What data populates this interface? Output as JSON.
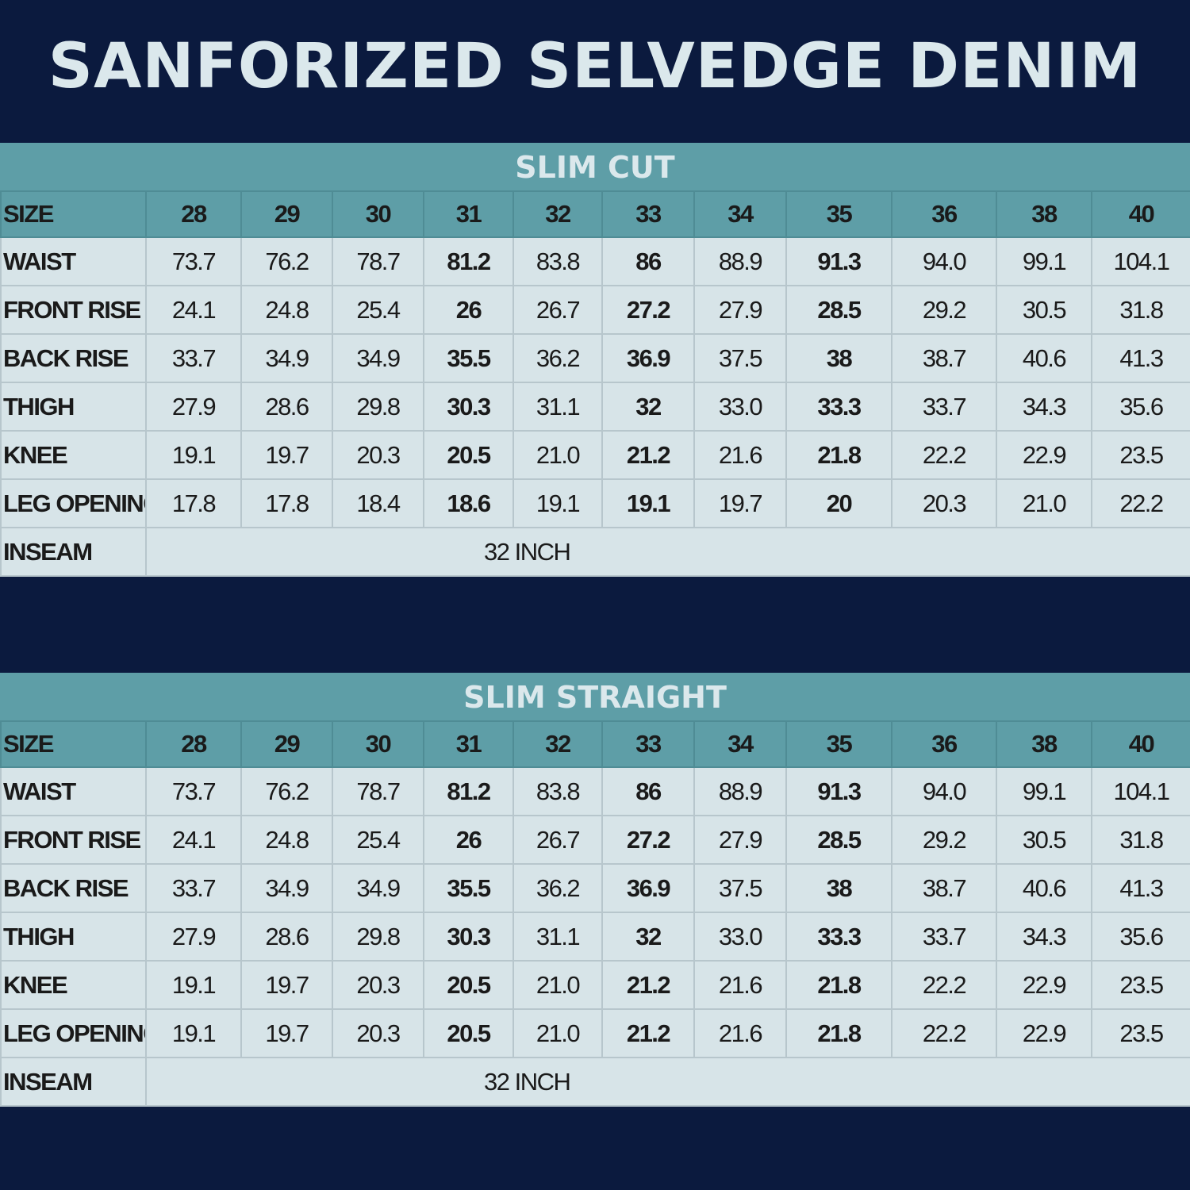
{
  "title": "SANFORIZED SELVEDGE DENIM",
  "colors": {
    "background": "#0b1a3e",
    "band": "#5e9ea7",
    "cell": "#d7e4e8",
    "title_text": "#dbe8ec"
  },
  "tables": [
    {
      "name": "SLIM CUT",
      "size_label": "SIZE",
      "sizes": [
        "28",
        "29",
        "30",
        "31",
        "32",
        "33",
        "34",
        "35",
        "36",
        "38",
        "40"
      ],
      "rows": [
        {
          "label": "WAIST",
          "values": [
            "73.7",
            "76.2",
            "78.7",
            "81.2",
            "83.8",
            "86",
            "88.9",
            "91.3",
            "94.0",
            "99.1",
            "104.1"
          ]
        },
        {
          "label": "FRONT RISE",
          "values": [
            "24.1",
            "24.8",
            "25.4",
            "26",
            "26.7",
            "27.2",
            "27.9",
            "28.5",
            "29.2",
            "30.5",
            "31.8"
          ]
        },
        {
          "label": "BACK RISE",
          "values": [
            "33.7",
            "34.9",
            "34.9",
            "35.5",
            "36.2",
            "36.9",
            "37.5",
            "38",
            "38.7",
            "40.6",
            "41.3"
          ]
        },
        {
          "label": "THIGH",
          "values": [
            "27.9",
            "28.6",
            "29.8",
            "30.3",
            "31.1",
            "32",
            "33.0",
            "33.3",
            "33.7",
            "34.3",
            "35.6"
          ]
        },
        {
          "label": "KNEE",
          "values": [
            "19.1",
            "19.7",
            "20.3",
            "20.5",
            "21.0",
            "21.2",
            "21.6",
            "21.8",
            "22.2",
            "22.9",
            "23.5"
          ]
        },
        {
          "label": "LEG OPENING",
          "values": [
            "17.8",
            "17.8",
            "18.4",
            "18.6",
            "19.1",
            "19.1",
            "19.7",
            "20",
            "20.3",
            "21.0",
            "22.2"
          ]
        }
      ],
      "inseam_label": "INSEAM",
      "inseam_value": "32 INCH"
    },
    {
      "name": "SLIM STRAIGHT",
      "size_label": "SIZE",
      "sizes": [
        "28",
        "29",
        "30",
        "31",
        "32",
        "33",
        "34",
        "35",
        "36",
        "38",
        "40"
      ],
      "rows": [
        {
          "label": "WAIST",
          "values": [
            "73.7",
            "76.2",
            "78.7",
            "81.2",
            "83.8",
            "86",
            "88.9",
            "91.3",
            "94.0",
            "99.1",
            "104.1"
          ]
        },
        {
          "label": "FRONT RISE",
          "values": [
            "24.1",
            "24.8",
            "25.4",
            "26",
            "26.7",
            "27.2",
            "27.9",
            "28.5",
            "29.2",
            "30.5",
            "31.8"
          ]
        },
        {
          "label": "BACK RISE",
          "values": [
            "33.7",
            "34.9",
            "34.9",
            "35.5",
            "36.2",
            "36.9",
            "37.5",
            "38",
            "38.7",
            "40.6",
            "41.3"
          ]
        },
        {
          "label": "THIGH",
          "values": [
            "27.9",
            "28.6",
            "29.8",
            "30.3",
            "31.1",
            "32",
            "33.0",
            "33.3",
            "33.7",
            "34.3",
            "35.6"
          ]
        },
        {
          "label": "KNEE",
          "values": [
            "19.1",
            "19.7",
            "20.3",
            "20.5",
            "21.0",
            "21.2",
            "21.6",
            "21.8",
            "22.2",
            "22.9",
            "23.5"
          ]
        },
        {
          "label": "LEG OPENING",
          "values": [
            "19.1",
            "19.7",
            "20.3",
            "20.5",
            "21.0",
            "21.2",
            "21.6",
            "21.8",
            "22.2",
            "22.9",
            "23.5"
          ]
        }
      ],
      "inseam_label": "INSEAM",
      "inseam_value": "32 INCH"
    }
  ]
}
